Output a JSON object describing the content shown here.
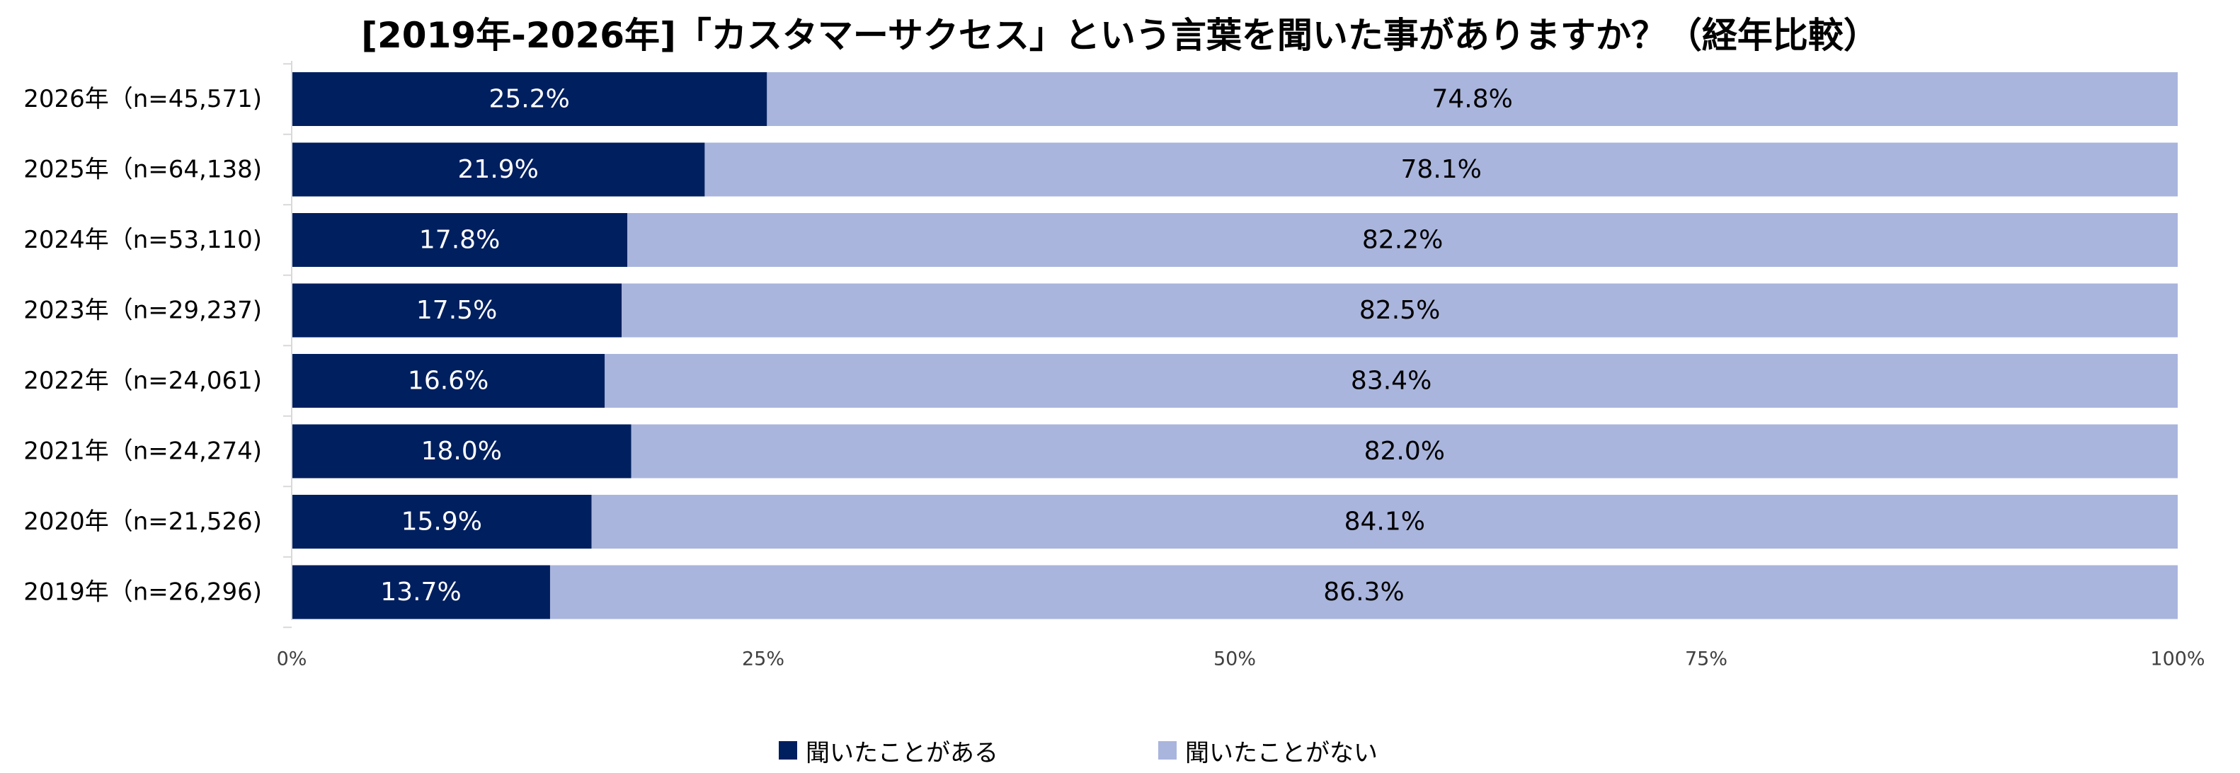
{
  "chart_data": {
    "type": "bar",
    "orientation": "horizontal",
    "stacked": true,
    "percent_stacked": true,
    "title": "[2019年-2026年]「カスタマーサクセス」という言葉を聞いた事がありますか？（経年比較）",
    "categories": [
      "2026年（n=45,571)",
      "2025年（n=64,138)",
      "2024年（n=53,110)",
      "2023年（n=29,237)",
      "2022年（n=24,061)",
      "2021年（n=24,274)",
      "2020年（n=21,526)",
      "2019年（n=26,296)"
    ],
    "series": [
      {
        "name": "聞いたことがある",
        "color": "#001f5f",
        "label_color": "#ffffff",
        "values": [
          25.2,
          21.9,
          17.8,
          17.5,
          16.6,
          18.0,
          15.9,
          13.7
        ],
        "labels": [
          "25.2%",
          "21.9%",
          "17.8%",
          "17.5%",
          "16.6%",
          "18.0%",
          "15.9%",
          "13.7%"
        ]
      },
      {
        "name": "聞いたことがない",
        "color": "#a9b5dc",
        "label_color": "#000000",
        "values": [
          74.8,
          78.1,
          82.2,
          82.5,
          83.4,
          82.0,
          84.1,
          86.3
        ],
        "labels": [
          "74.8%",
          "78.1%",
          "82.2%",
          "82.5%",
          "83.4%",
          "82.0%",
          "84.1%",
          "86.3%"
        ]
      }
    ],
    "xlim": [
      0,
      100
    ],
    "x_ticks": [
      0,
      25,
      50,
      75,
      100
    ],
    "x_tick_labels": [
      "0%",
      "25%",
      "50%",
      "75%",
      "100%"
    ],
    "grid": false,
    "legend_position": "bottom"
  }
}
